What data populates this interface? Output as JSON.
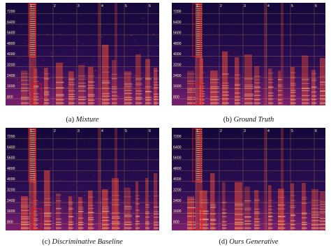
{
  "figure": {
    "panels": [
      {
        "label": "(a)",
        "name": "Mixture",
        "variant": "mixture"
      },
      {
        "label": "(b)",
        "name": "Ground Truth",
        "variant": "clean"
      },
      {
        "label": "(c)",
        "name": "Discriminative Baseline",
        "variant": "baseline"
      },
      {
        "label": "(d)",
        "name": "Ours Generative",
        "variant": "ours"
      }
    ],
    "y_ticks": [
      "7200",
      "6400",
      "5600",
      "4800",
      "4000",
      "3200",
      "2400",
      "1600",
      "800"
    ],
    "x_ticks": [
      "1",
      "2",
      "3",
      "4",
      "5",
      "6"
    ],
    "colors": {
      "background_low": "#14083a",
      "mid": "#7a1f6e",
      "high": "#e0483a",
      "peak": "#fde9a3",
      "box": "#e01010"
    }
  }
}
